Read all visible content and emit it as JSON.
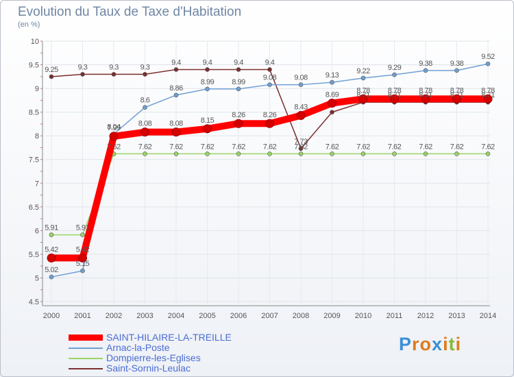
{
  "chart_data": {
    "type": "line",
    "title": "Evolution du Taux de Taxe d'Habitation",
    "ylabel": "(en %)",
    "xlabel": "",
    "ylim": [
      4.5,
      10
    ],
    "yticks": [
      "4.5",
      "5",
      "5.5",
      "6",
      "6.5",
      "7",
      "7.5",
      "8",
      "8.5",
      "9",
      "9.5",
      "10"
    ],
    "categories": [
      "2000",
      "2001",
      "2002",
      "2003",
      "2004",
      "2005",
      "2006",
      "2007",
      "2008",
      "2009",
      "2010",
      "2011",
      "2012",
      "2013",
      "2014"
    ],
    "series": [
      {
        "name": "Saint-Sornin-Leulac",
        "color": "#7b2e2e",
        "values": [
          9.25,
          9.3,
          9.3,
          9.3,
          9.4,
          9.4,
          9.4,
          9.4,
          7.73,
          8.5,
          8.71,
          8.71,
          8.71,
          8.71,
          8.71
        ],
        "labels": [
          "9.25",
          "9.3",
          "9.3",
          "9.3",
          "9.4",
          "9.4",
          "9.4",
          "9.4",
          "7.73",
          "",
          "8.71",
          "8.71",
          "8.71",
          "8.71",
          "8.71"
        ]
      },
      {
        "name": "Dompierre-les-Eglises",
        "color": "#99d466",
        "values": [
          5.91,
          5.91,
          7.62,
          7.62,
          7.62,
          7.62,
          7.62,
          7.62,
          7.62,
          7.62,
          7.62,
          7.62,
          7.62,
          7.62,
          7.62
        ],
        "labels": [
          "5.91",
          "5.91",
          "7.62",
          "7.62",
          "7.62",
          "7.62",
          "7.62",
          "7.62",
          "7.62",
          "7.62",
          "7.62",
          "7.62",
          "7.62",
          "7.62",
          "7.62"
        ]
      },
      {
        "name": "Arnac-la-Poste",
        "color": "#6fa0d4",
        "values": [
          5.02,
          5.15,
          8.04,
          8.6,
          8.86,
          8.99,
          8.99,
          9.08,
          9.08,
          9.13,
          9.22,
          9.29,
          9.38,
          9.38,
          9.52
        ],
        "labels": [
          "5.02",
          "5.15",
          "8.04",
          "8.6",
          "8.86",
          "8.99",
          "8.99",
          "9.08",
          "9.08",
          "9.13",
          "9.22",
          "9.29",
          "9.38",
          "9.38",
          "9.52"
        ]
      },
      {
        "name": "SAINT-HILAIRE-LA-TREILLE",
        "color": "#ff0000",
        "values": [
          5.42,
          5.42,
          7.99,
          8.08,
          8.08,
          8.15,
          8.26,
          8.26,
          8.43,
          8.69,
          8.78,
          8.78,
          8.78,
          8.78,
          8.78
        ],
        "labels": [
          "5.42",
          "5.42",
          "7.99",
          "8.08",
          "8.08",
          "8.15",
          "8.26",
          "8.26",
          "8.43",
          "8.69",
          "8.78",
          "8.78",
          "8.78",
          "8.78",
          "8.78"
        ]
      }
    ],
    "legend": [
      {
        "name": "SAINT-HILAIRE-LA-TREILLE",
        "color": "#ff0000"
      },
      {
        "name": "Arnac-la-Poste",
        "color": "#6fa0d4"
      },
      {
        "name": "Dompierre-les-Eglises",
        "color": "#99d466"
      },
      {
        "name": "Saint-Sornin-Leulac",
        "color": "#7b2e2e"
      }
    ]
  },
  "logo": {
    "letters": [
      "P",
      "r",
      "o",
      "x",
      "i",
      "t",
      "i"
    ],
    "colors": [
      "#3a8fd6",
      "#e07b1a",
      "#e07b1a",
      "#3a8fd6",
      "#e07b1a",
      "#8ab832",
      "#e07b1a"
    ]
  }
}
